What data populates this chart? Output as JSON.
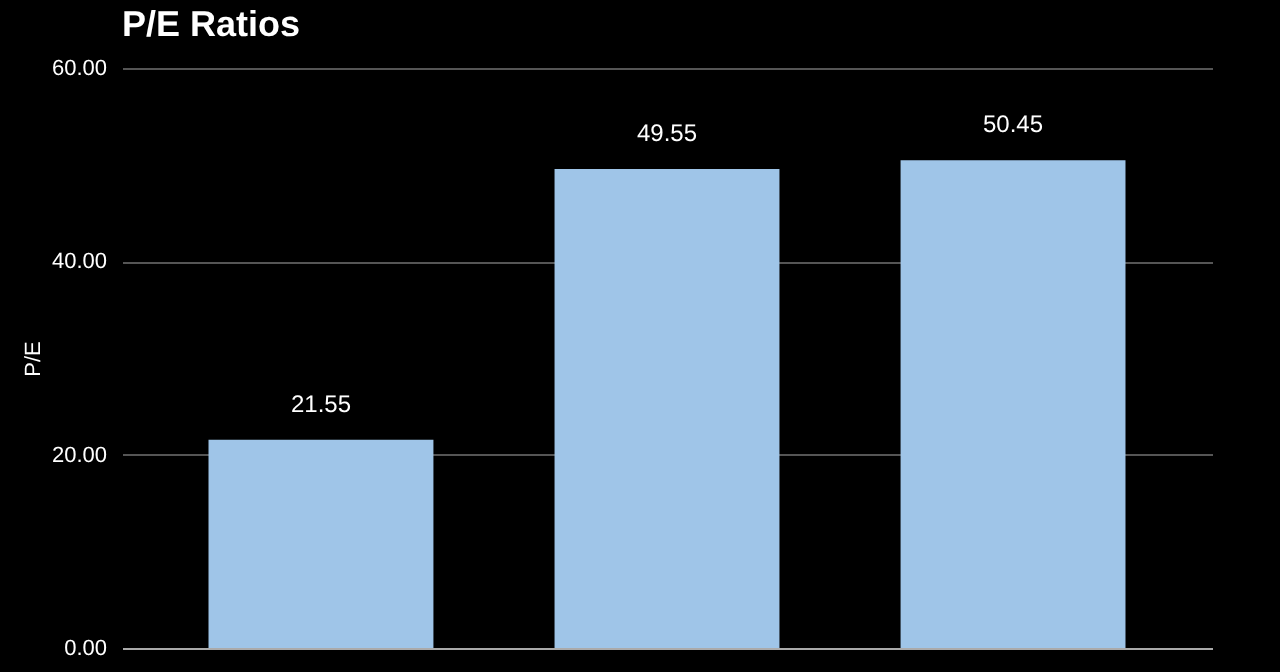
{
  "chart_data": {
    "type": "bar",
    "title": "P/E Ratios",
    "ylabel": "P/E",
    "categories": [
      null,
      null,
      null
    ],
    "values": [
      21.55,
      49.55,
      50.45
    ],
    "color": "#9fc5e8",
    "data_labels": true,
    "ylim": [
      0,
      60
    ],
    "yticks": [
      {
        "value": 0,
        "label": "0.00"
      },
      {
        "value": 20,
        "label": "20.00"
      },
      {
        "value": 40,
        "label": "40.00"
      },
      {
        "value": 60,
        "label": "60.00"
      }
    ],
    "grid": "y"
  }
}
